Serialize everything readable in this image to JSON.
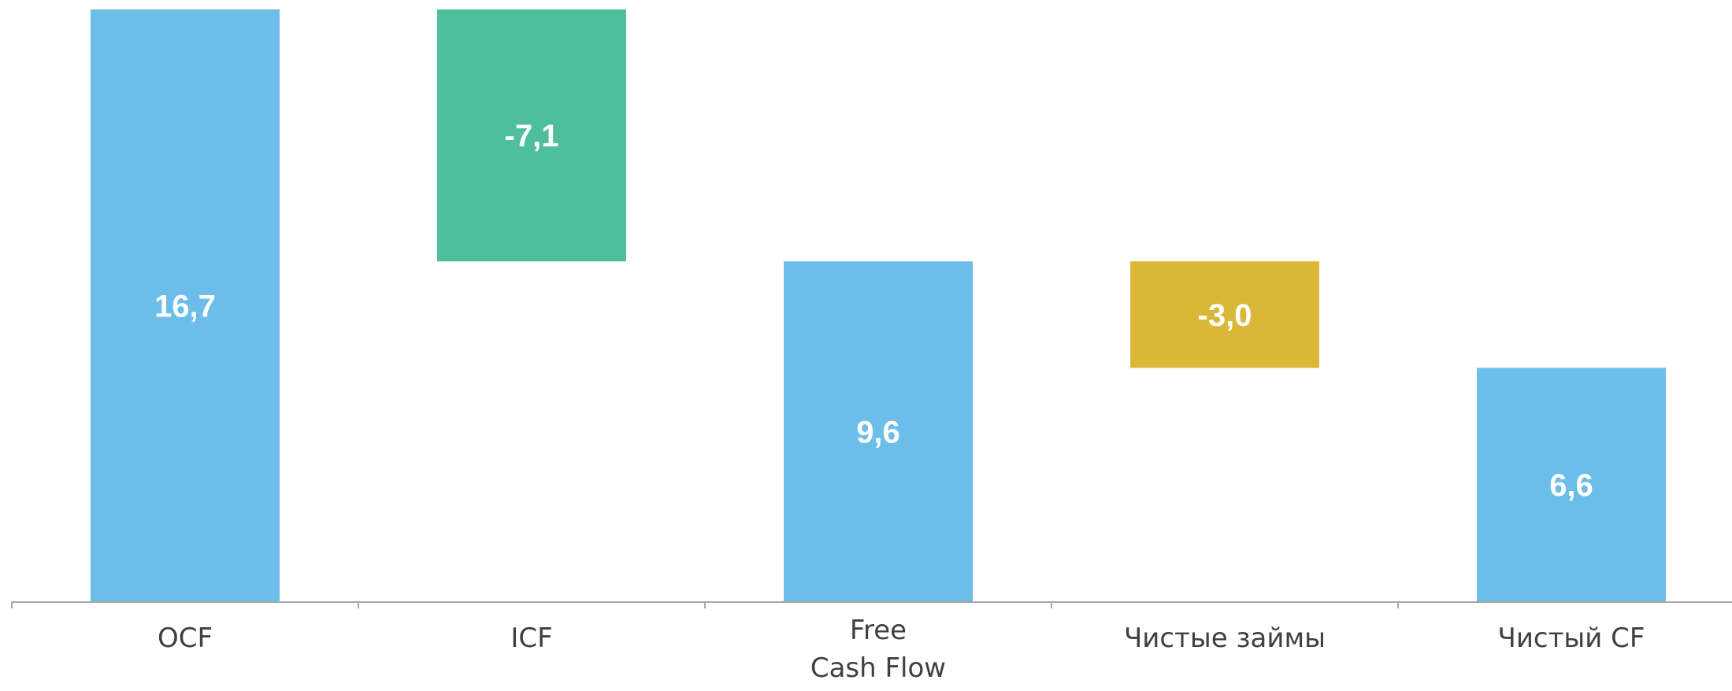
{
  "chart_data": {
    "type": "bar",
    "subtype": "waterfall",
    "categories": [
      "OCF",
      "ICF",
      "Free Cash Flow",
      "Чистые займы",
      "Чистый CF"
    ],
    "category_label_lines": [
      [
        "OCF"
      ],
      [
        "ICF"
      ],
      [
        "Free",
        "Cash Flow"
      ],
      [
        "Чистые займы"
      ],
      [
        "Чистый CF"
      ]
    ],
    "values": [
      16.7,
      -7.1,
      9.6,
      -3.0,
      6.6
    ],
    "data_labels": [
      "16,7",
      "-7,1",
      "9,6",
      "-3,0",
      "6,6"
    ],
    "bar_kinds": [
      "total",
      "change",
      "total",
      "change",
      "total"
    ],
    "colors": [
      "#6CBDEA",
      "#4FBE9A",
      "#6CBDEA",
      "#DBB737",
      "#6CBDEA"
    ],
    "ylim": [
      0,
      16.7
    ],
    "grid": false,
    "legend": "none",
    "title": "",
    "xlabel": "",
    "ylabel": ""
  }
}
